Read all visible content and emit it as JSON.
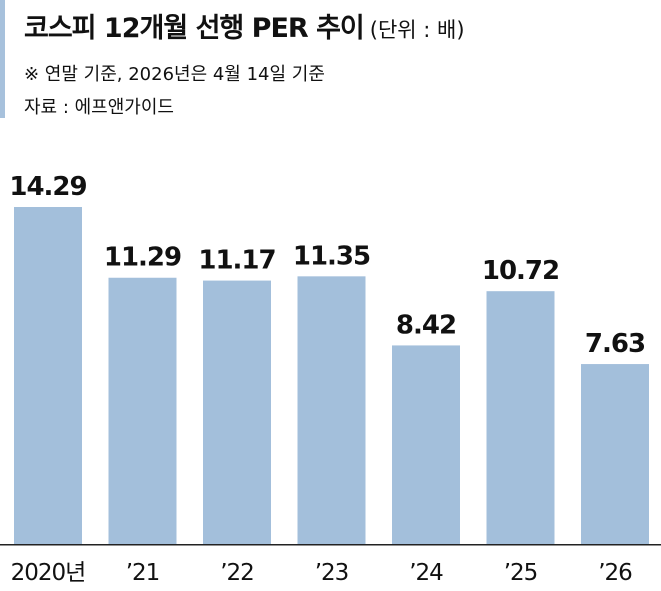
{
  "header": {
    "title": "코스피 12개월 선행 PER 추이",
    "unit": "(단위 : 배)",
    "note": "※  연말 기준, 2026년은 4월 14일 기준",
    "source": "자료 : 에프앤가이드"
  },
  "colors": {
    "bar": "#a3bfdb",
    "accent": "#a7c1dc"
  },
  "chart_data": {
    "type": "bar",
    "categories": [
      "2020년",
      "’21",
      "’22",
      "’23",
      "’24",
      "’25",
      "’26"
    ],
    "values": [
      14.29,
      11.29,
      11.17,
      11.35,
      8.42,
      10.72,
      7.63
    ],
    "value_labels": [
      "14.29",
      "11.29",
      "11.17",
      "11.35",
      "8.42",
      "10.72",
      "7.63"
    ],
    "ylim": [
      0,
      14.29
    ],
    "grid": false,
    "legend": "none"
  }
}
